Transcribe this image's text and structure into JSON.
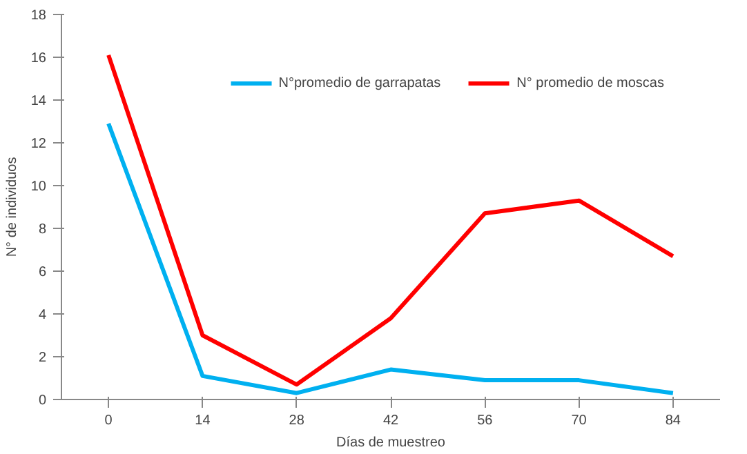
{
  "chart_data": {
    "type": "line",
    "xlabel": "Días de muestreo",
    "ylabel": "N° de individuos",
    "categories": [
      "0",
      "14",
      "28",
      "42",
      "56",
      "70",
      "84"
    ],
    "series": [
      {
        "name": "N°promedio de garrapatas",
        "color": "#00b0f0",
        "values": [
          12.9,
          1.1,
          0.3,
          1.4,
          0.9,
          0.9,
          0.3
        ]
      },
      {
        "name": "N° promedio de moscas",
        "color": "#ff0000",
        "values": [
          16.1,
          3.0,
          0.7,
          3.8,
          8.7,
          9.3,
          6.7
        ]
      }
    ],
    "ylim": [
      0,
      18
    ],
    "yticks": [
      0,
      2,
      4,
      6,
      8,
      10,
      12,
      14,
      16,
      18
    ],
    "grid": false,
    "legend": "top right",
    "marker": "none",
    "line_style": "solid"
  }
}
